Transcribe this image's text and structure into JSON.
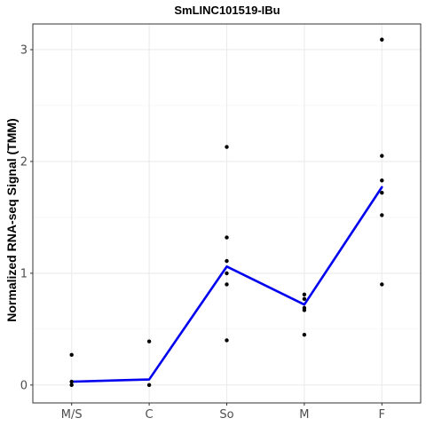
{
  "chart_data": {
    "type": "scatter",
    "title": "SmLINC101519-IBu",
    "xlabel": "",
    "ylabel": "Normalized RNA-seq Signal (TMM)",
    "categories": [
      "M/S",
      "C",
      "So",
      "M",
      "F"
    ],
    "y_ticks": [
      0,
      1,
      2,
      3
    ],
    "y_tick_labels": [
      "0",
      "1",
      "2",
      "3"
    ],
    "ylim": [
      -0.16,
      3.23
    ],
    "grid": true,
    "series": [
      {
        "kind": "points",
        "color": "#000000",
        "points": [
          {
            "x": "M/S",
            "y": 0.27
          },
          {
            "x": "M/S",
            "y": 0.03
          },
          {
            "x": "M/S",
            "y": 0.0
          },
          {
            "x": "C",
            "y": 0.39
          },
          {
            "x": "C",
            "y": 0.0
          },
          {
            "x": "So",
            "y": 2.13
          },
          {
            "x": "So",
            "y": 1.32
          },
          {
            "x": "So",
            "y": 1.11
          },
          {
            "x": "So",
            "y": 1.0
          },
          {
            "x": "So",
            "y": 0.9
          },
          {
            "x": "So",
            "y": 0.4
          },
          {
            "x": "M",
            "y": 0.81
          },
          {
            "x": "M",
            "y": 0.77
          },
          {
            "x": "M",
            "y": 0.69
          },
          {
            "x": "M",
            "y": 0.67
          },
          {
            "x": "M",
            "y": 0.45
          },
          {
            "x": "F",
            "y": 3.09
          },
          {
            "x": "F",
            "y": 2.05
          },
          {
            "x": "F",
            "y": 1.83
          },
          {
            "x": "F",
            "y": 1.72
          },
          {
            "x": "F",
            "y": 1.52
          },
          {
            "x": "F",
            "y": 0.9
          }
        ]
      },
      {
        "kind": "line",
        "color": "#0000ee",
        "values": [
          0.03,
          0.05,
          1.06,
          0.72,
          1.77
        ]
      }
    ]
  }
}
